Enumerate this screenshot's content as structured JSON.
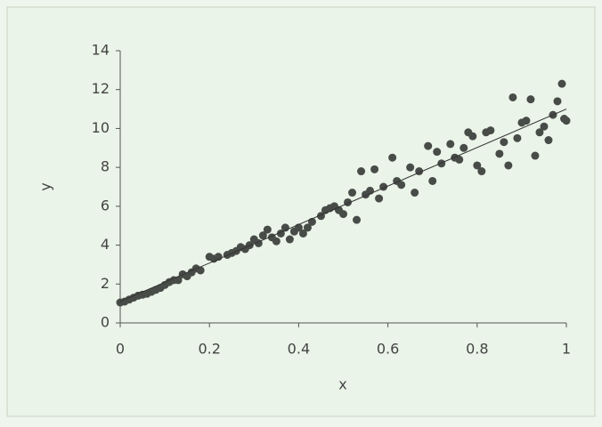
{
  "chart_data": {
    "type": "scatter",
    "x_label": "x",
    "y_label": "y",
    "xlim": [
      0,
      1
    ],
    "ylim": [
      0,
      14
    ],
    "xticks": [
      0,
      0.2,
      0.4,
      0.6,
      0.8,
      1
    ],
    "yticks": [
      0,
      2,
      4,
      6,
      8,
      10,
      12,
      14
    ],
    "color": "#484c48",
    "trendline": {
      "x": [
        0,
        1
      ],
      "y": [
        1.1,
        11.0
      ],
      "color": "#333333"
    },
    "x": [
      0,
      0.01,
      0.02,
      0.03,
      0.04,
      0.05,
      0.06,
      0.07,
      0.08,
      0.09,
      0.1,
      0.11,
      0.12,
      0.13,
      0.14,
      0.15,
      0.16,
      0.17,
      0.18,
      0.2,
      0.21,
      0.22,
      0.24,
      0.25,
      0.26,
      0.27,
      0.28,
      0.29,
      0.3,
      0.31,
      0.32,
      0.33,
      0.34,
      0.35,
      0.36,
      0.37,
      0.38,
      0.39,
      0.4,
      0.41,
      0.42,
      0.43,
      0.45,
      0.46,
      0.47,
      0.48,
      0.49,
      0.5,
      0.51,
      0.52,
      0.53,
      0.54,
      0.55,
      0.56,
      0.57,
      0.58,
      0.59,
      0.61,
      0.62,
      0.63,
      0.65,
      0.66,
      0.67,
      0.69,
      0.7,
      0.71,
      0.72,
      0.74,
      0.75,
      0.76,
      0.77,
      0.78,
      0.79,
      0.8,
      0.81,
      0.82,
      0.83,
      0.85,
      0.86,
      0.87,
      0.88,
      0.89,
      0.9,
      0.91,
      0.92,
      0.93,
      0.94,
      0.95,
      0.96,
      0.97,
      0.98,
      0.99,
      1,
      0.995
    ],
    "values": [
      1.05,
      1.1,
      1.2,
      1.3,
      1.4,
      1.45,
      1.5,
      1.6,
      1.7,
      1.8,
      1.95,
      2.1,
      2.2,
      2.2,
      2.5,
      2.4,
      2.6,
      2.8,
      2.7,
      3.4,
      3.3,
      3.4,
      3.5,
      3.6,
      3.7,
      3.9,
      3.8,
      4.0,
      4.3,
      4.1,
      4.5,
      4.8,
      4.4,
      4.2,
      4.6,
      4.9,
      4.3,
      4.7,
      4.9,
      4.6,
      4.9,
      5.2,
      5.5,
      5.8,
      5.9,
      6.0,
      5.8,
      5.6,
      6.2,
      6.7,
      5.3,
      7.8,
      6.6,
      6.8,
      7.9,
      6.4,
      7.0,
      8.5,
      7.3,
      7.1,
      8.0,
      6.7,
      7.8,
      9.1,
      7.3,
      8.8,
      8.2,
      9.2,
      8.5,
      8.4,
      9.0,
      9.8,
      9.6,
      8.1,
      7.8,
      9.8,
      9.9,
      8.7,
      9.3,
      8.1,
      11.6,
      9.5,
      10.3,
      10.4,
      11.5,
      8.6,
      9.8,
      10.1,
      9.4,
      10.7,
      11.4,
      12.3,
      10.4,
      10.5
    ]
  }
}
